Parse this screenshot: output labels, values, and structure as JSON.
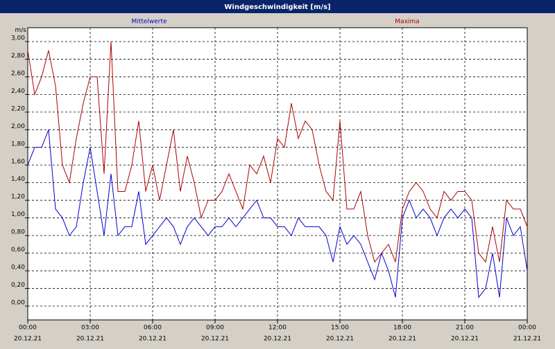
{
  "window_title": "Windgeschwindigkeit [m/s]",
  "chart_data": {
    "type": "line",
    "y_label": "m/s",
    "x": [
      0,
      20,
      40,
      60,
      80,
      100,
      120,
      140,
      160,
      180,
      200,
      220,
      240,
      260,
      280,
      300,
      320,
      340,
      360,
      380,
      400,
      420,
      440,
      460,
      480,
      500,
      520,
      540,
      560,
      580,
      600,
      620,
      640,
      660,
      680,
      700,
      720,
      740,
      760,
      780,
      800,
      820,
      840,
      860,
      880,
      900,
      920,
      940,
      960,
      980,
      1000,
      1020,
      1040,
      1060,
      1080,
      1100,
      1120,
      1140,
      1160,
      1180,
      1200,
      1220,
      1240,
      1260,
      1280,
      1300,
      1320,
      1340,
      1360,
      1380,
      1400,
      1420,
      1440
    ],
    "series": [
      {
        "name": "Mittelwerte",
        "color": "#0000cc",
        "values": [
          1.6,
          1.8,
          1.8,
          2.0,
          1.1,
          1.0,
          0.8,
          0.9,
          1.4,
          1.8,
          1.3,
          0.8,
          1.5,
          0.8,
          0.9,
          0.9,
          1.3,
          0.7,
          0.8,
          0.9,
          1.0,
          0.9,
          0.7,
          0.9,
          1.0,
          0.9,
          0.8,
          0.9,
          0.9,
          1.0,
          0.9,
          1.0,
          1.1,
          1.2,
          1.0,
          1.0,
          0.9,
          0.9,
          0.8,
          1.0,
          0.9,
          0.9,
          0.9,
          0.8,
          0.5,
          0.9,
          0.7,
          0.8,
          0.7,
          0.5,
          0.3,
          0.6,
          0.4,
          0.1,
          1.0,
          1.2,
          1.0,
          1.1,
          1.0,
          0.8,
          1.0,
          1.1,
          1.0,
          1.1,
          1.0,
          0.1,
          0.2,
          0.6,
          0.1,
          1.0,
          0.8,
          0.9,
          0.4
        ]
      },
      {
        "name": "Maxima",
        "color": "#aa0000",
        "values": [
          2.9,
          2.4,
          2.6,
          2.9,
          2.5,
          1.6,
          1.4,
          1.9,
          2.3,
          2.6,
          2.6,
          1.5,
          3.0,
          1.3,
          1.3,
          1.6,
          2.1,
          1.3,
          1.6,
          1.2,
          1.6,
          2.0,
          1.3,
          1.7,
          1.4,
          1.0,
          1.2,
          1.2,
          1.3,
          1.5,
          1.3,
          1.1,
          1.6,
          1.5,
          1.7,
          1.4,
          1.9,
          1.8,
          2.3,
          1.9,
          2.1,
          2.0,
          1.6,
          1.3,
          1.2,
          2.1,
          1.1,
          1.1,
          1.3,
          0.8,
          0.5,
          0.6,
          0.7,
          0.5,
          1.1,
          1.3,
          1.4,
          1.3,
          1.1,
          1.0,
          1.3,
          1.2,
          1.3,
          1.3,
          1.2,
          0.6,
          0.5,
          0.9,
          0.5,
          1.2,
          1.1,
          1.1,
          0.9
        ]
      }
    ],
    "xlim": [
      0,
      1440
    ],
    "xticks": [
      {
        "value": 0,
        "label": "00:00",
        "date": "20.12.21"
      },
      {
        "value": 180,
        "label": "03:00",
        "date": "20.12.21"
      },
      {
        "value": 360,
        "label": "06:00",
        "date": "20.12.21"
      },
      {
        "value": 540,
        "label": "09:00",
        "date": "20.12.21"
      },
      {
        "value": 720,
        "label": "12:00",
        "date": "20.12.21"
      },
      {
        "value": 900,
        "label": "15:00",
        "date": "20.12.21"
      },
      {
        "value": 1080,
        "label": "18:00",
        "date": "20.12.21"
      },
      {
        "value": 1260,
        "label": "21:00",
        "date": "20.12.21"
      },
      {
        "value": 1440,
        "label": "00:00",
        "date": "21.12.21"
      }
    ],
    "ylim": [
      -0.157,
      3.157
    ],
    "yticks": [
      {
        "value": 0,
        "label": "0,00"
      },
      {
        "value": 0.2,
        "label": "0,20"
      },
      {
        "value": 0.4,
        "label": "0,40"
      },
      {
        "value": 0.6,
        "label": "0,60"
      },
      {
        "value": 0.8,
        "label": "0,80"
      },
      {
        "value": 1.0,
        "label": "1,00"
      },
      {
        "value": 1.2,
        "label": "1,20"
      },
      {
        "value": 1.4,
        "label": "1,40"
      },
      {
        "value": 1.6,
        "label": "1,60"
      },
      {
        "value": 1.8,
        "label": "1,80"
      },
      {
        "value": 2.0,
        "label": "2,00"
      },
      {
        "value": 2.2,
        "label": "2,20"
      },
      {
        "value": 2.4,
        "label": "2,40"
      },
      {
        "value": 2.6,
        "label": "2,60"
      },
      {
        "value": 2.8,
        "label": "2,80"
      },
      {
        "value": 3.0,
        "label": "3,00"
      }
    ],
    "grid": true
  }
}
